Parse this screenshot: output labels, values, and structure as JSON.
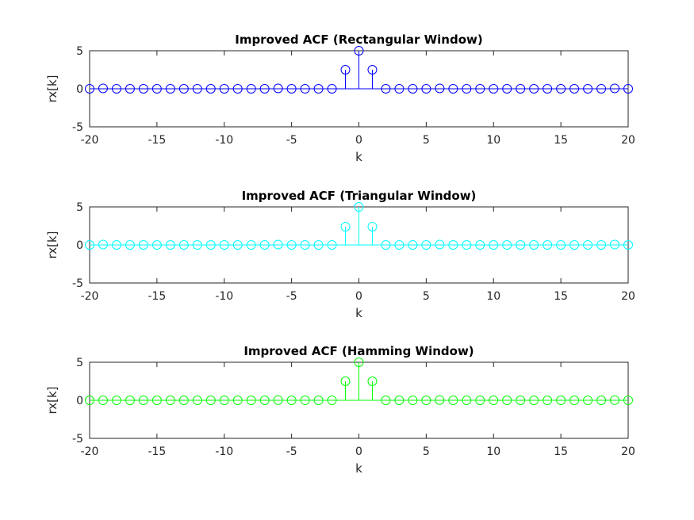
{
  "chart_data": [
    {
      "type": "stem",
      "title": "Improved ACF (Rectangular Window)",
      "xlabel": "k",
      "ylabel": "rx[k]",
      "xlim": [
        -20,
        20
      ],
      "ylim": [
        -5,
        5
      ],
      "xticks": [
        -20,
        -15,
        -10,
        -5,
        0,
        5,
        10,
        15,
        20
      ],
      "yticks": [
        -5,
        0,
        5
      ],
      "color": "#0000ff",
      "series": [
        {
          "x": [
            -20,
            -19,
            -18,
            -17,
            -16,
            -15,
            -14,
            -13,
            -12,
            -11,
            -10,
            -9,
            -8,
            -7,
            -6,
            -5,
            -4,
            -3,
            -2,
            -1,
            0,
            1,
            2,
            3,
            4,
            5,
            6,
            7,
            8,
            9,
            10,
            11,
            12,
            13,
            14,
            15,
            16,
            17,
            18,
            19,
            20
          ],
          "y": [
            0,
            0.05,
            0,
            0,
            0,
            0,
            0,
            0,
            0,
            0,
            0,
            0,
            0,
            0,
            0.05,
            0,
            0,
            0,
            0,
            2.5,
            5,
            2.5,
            0,
            0,
            0,
            0,
            0.05,
            0,
            0,
            0,
            0,
            0,
            0,
            0,
            0,
            0,
            0,
            0,
            0,
            0.05,
            0
          ]
        }
      ]
    },
    {
      "type": "stem",
      "title": "Improved ACF (Triangular Window)",
      "xlabel": "k",
      "ylabel": "rx[k]",
      "xlim": [
        -20,
        20
      ],
      "ylim": [
        -5,
        5
      ],
      "xticks": [
        -20,
        -15,
        -10,
        -5,
        0,
        5,
        10,
        15,
        20
      ],
      "yticks": [
        -5,
        0,
        5
      ],
      "color": "#00ffff",
      "series": [
        {
          "x": [
            -20,
            -19,
            -18,
            -17,
            -16,
            -15,
            -14,
            -13,
            -12,
            -11,
            -10,
            -9,
            -8,
            -7,
            -6,
            -5,
            -4,
            -3,
            -2,
            -1,
            0,
            1,
            2,
            3,
            4,
            5,
            6,
            7,
            8,
            9,
            10,
            11,
            12,
            13,
            14,
            15,
            16,
            17,
            18,
            19,
            20
          ],
          "y": [
            0,
            0.05,
            0,
            0,
            0,
            0,
            0,
            0,
            0,
            0,
            0,
            0,
            0,
            0,
            0.05,
            0,
            0,
            0,
            0,
            2.4,
            5,
            2.4,
            0,
            0,
            0,
            0,
            0.05,
            0,
            0,
            0,
            0,
            0,
            0,
            0,
            0,
            0,
            0,
            0,
            0,
            0.05,
            0
          ]
        }
      ]
    },
    {
      "type": "stem",
      "title": "Improved ACF (Hamming Window)",
      "xlabel": "k",
      "ylabel": "rx[k]",
      "xlim": [
        -20,
        20
      ],
      "ylim": [
        -5,
        5
      ],
      "xticks": [
        -20,
        -15,
        -10,
        -5,
        0,
        5,
        10,
        15,
        20
      ],
      "yticks": [
        -5,
        0,
        5
      ],
      "color": "#00ff00",
      "series": [
        {
          "x": [
            -20,
            -19,
            -18,
            -17,
            -16,
            -15,
            -14,
            -13,
            -12,
            -11,
            -10,
            -9,
            -8,
            -7,
            -6,
            -5,
            -4,
            -3,
            -2,
            -1,
            0,
            1,
            2,
            3,
            4,
            5,
            6,
            7,
            8,
            9,
            10,
            11,
            12,
            13,
            14,
            15,
            16,
            17,
            18,
            19,
            20
          ],
          "y": [
            0,
            0,
            0,
            0,
            0,
            0,
            0,
            0,
            0,
            0,
            0,
            0,
            0,
            0,
            0.03,
            0,
            0,
            0,
            0,
            2.5,
            5,
            2.5,
            0,
            0,
            0,
            0,
            0.03,
            0,
            0,
            0,
            0,
            0,
            0,
            0,
            0,
            0,
            0,
            0,
            0,
            0.03,
            0
          ]
        }
      ]
    }
  ]
}
